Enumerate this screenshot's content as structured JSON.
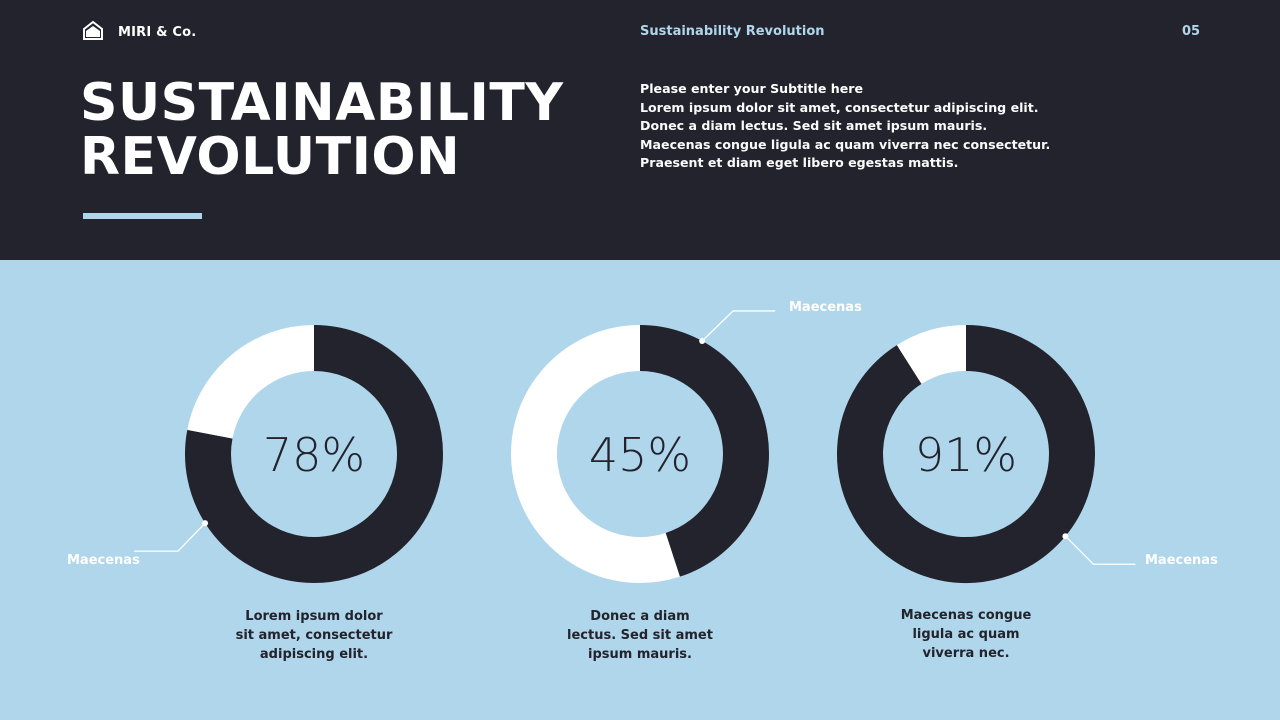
{
  "header": {
    "brand_name": "MIRI & Co.",
    "deck_name": "Sustainability Revolution",
    "page_number": "05",
    "title_lines": [
      "SUSTAINABILITY",
      "REVOLUTION"
    ],
    "subtitle": "Please enter your Subtitle here",
    "body_lines": [
      "Lorem ipsum dolor sit amet, consectetur adipiscing elit.",
      "Donec a diam lectus. Sed sit amet ipsum mauris.",
      "Maecenas congue ligula ac quam viverra nec consectetur.",
      "Praesent et diam eget libero egestas mattis."
    ]
  },
  "colors": {
    "dark": "#23232d",
    "light_blue": "#afd6ea",
    "white": "#ffffff"
  },
  "icons": {
    "brand": "house-icon"
  },
  "chart_data": [
    {
      "type": "pie",
      "values": [
        78,
        22
      ],
      "center_label": "78%",
      "callout": "Maecenas",
      "caption_lines": [
        "Lorem ipsum dolor",
        "sit amet, consectetur",
        "adipiscing elit."
      ]
    },
    {
      "type": "pie",
      "values": [
        45,
        55
      ],
      "center_label": "45%",
      "callout": "Maecenas",
      "caption_lines": [
        "Donec a diam",
        "lectus. Sed sit amet",
        "ipsum mauris."
      ]
    },
    {
      "type": "pie",
      "values": [
        91,
        9
      ],
      "center_label": "91%",
      "callout": "Maecenas",
      "caption_lines": [
        "Maecenas congue",
        "ligula ac quam",
        "viverra nec."
      ]
    }
  ]
}
